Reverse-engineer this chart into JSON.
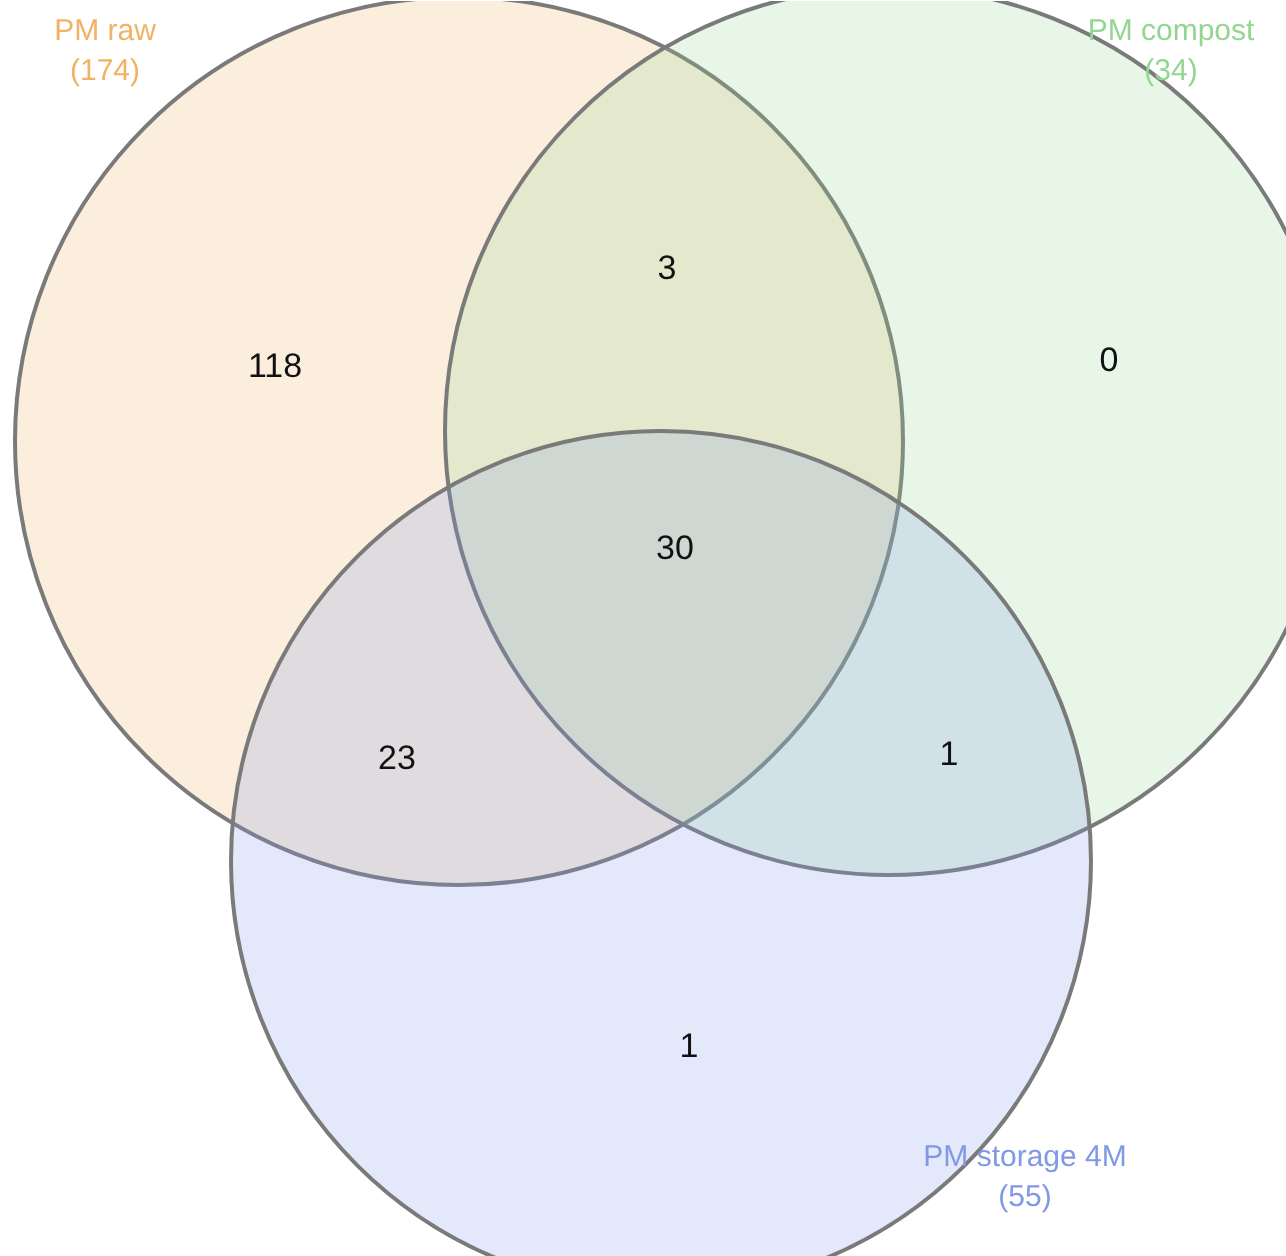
{
  "chart_data": {
    "type": "other",
    "series": [
      {
        "name": "PM raw",
        "color": "#f2b266",
        "values": [
          174
        ],
        "value_labels": [
          "(174)"
        ]
      },
      {
        "name": "PM compost",
        "color": "#92d692",
        "values": [
          34
        ],
        "value_labels": [
          "(34)"
        ]
      },
      {
        "name": "PM storage 4M",
        "color": "#8099e6",
        "values": [
          55
        ],
        "value_labels": [
          "(55)"
        ]
      }
    ],
    "annotations": [
      "118",
      "3",
      "0",
      "23",
      "30",
      "1",
      "1"
    ]
  }
}
